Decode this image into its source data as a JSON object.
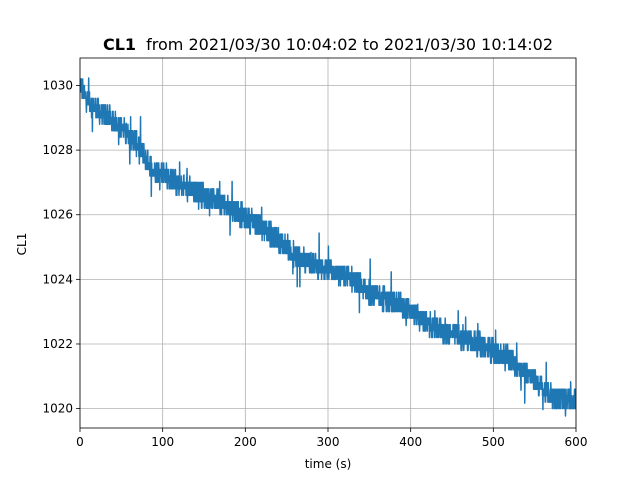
{
  "chart_data": {
    "type": "line",
    "title_bold": "CL1",
    "title_rest": "from 2021/03/30 10:04:02 to 2021/03/30 10:14:02",
    "xlabel": "time (s)",
    "ylabel": "CL1",
    "xlim": [
      0,
      600
    ],
    "ylim": [
      1019.4,
      1030.85
    ],
    "xticks": [
      0,
      100,
      200,
      300,
      400,
      500,
      600
    ],
    "yticks": [
      1020,
      1022,
      1024,
      1026,
      1028,
      1030
    ],
    "grid": true,
    "series_color": "#1f77b4",
    "series": [
      {
        "x": [
          0,
          5,
          10,
          20,
          30,
          40,
          50,
          60,
          70,
          80,
          90,
          100,
          110,
          120,
          130,
          140,
          150,
          160,
          170,
          180,
          190,
          200,
          210,
          220,
          230,
          240,
          250,
          260,
          270,
          280,
          290,
          300,
          310,
          320,
          330,
          340,
          350,
          360,
          370,
          380,
          390,
          400,
          410,
          420,
          430,
          440,
          450,
          460,
          470,
          480,
          490,
          500,
          510,
          520,
          530,
          540,
          550,
          560,
          570,
          580,
          590,
          600
        ],
        "y": [
          1030.1,
          1029.7,
          1029.5,
          1029.3,
          1029.1,
          1028.9,
          1028.7,
          1028.4,
          1028.2,
          1027.7,
          1027.4,
          1027.3,
          1027.1,
          1026.9,
          1026.8,
          1026.7,
          1026.6,
          1026.5,
          1026.4,
          1026.2,
          1026.1,
          1025.9,
          1025.8,
          1025.6,
          1025.4,
          1025.2,
          1025.0,
          1024.8,
          1024.6,
          1024.5,
          1024.4,
          1024.3,
          1024.2,
          1024.1,
          1024.0,
          1023.8,
          1023.6,
          1023.5,
          1023.4,
          1023.3,
          1023.2,
          1023.0,
          1022.8,
          1022.6,
          1022.5,
          1022.4,
          1022.3,
          1022.2,
          1022.1,
          1022.0,
          1021.9,
          1021.8,
          1021.7,
          1021.5,
          1021.3,
          1021.1,
          1020.9,
          1020.6,
          1020.4,
          1020.3,
          1020.3,
          1020.3
        ],
        "band_halfwidth": 0.35
      }
    ]
  }
}
